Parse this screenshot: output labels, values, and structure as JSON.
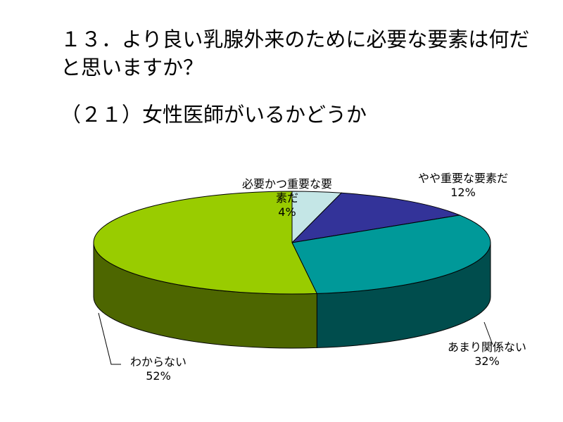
{
  "chart_data": {
    "type": "pie3d",
    "title": "１３．より良い乳腺外来のために必要な要素は何だと思いますか？",
    "subtitle": "（２１）女性医師がいるかどうか",
    "categories": [
      "必要かつ重要な要素だ",
      "やや重要な要素だ",
      "あまり関係ない",
      "わからない"
    ],
    "values": [
      4,
      12,
      32,
      52
    ],
    "value_labels": [
      "4%",
      "12%",
      "32%",
      "52%"
    ],
    "colors": [
      "#c4e6e6",
      "#333399",
      "#009999",
      "#99cc00"
    ]
  }
}
